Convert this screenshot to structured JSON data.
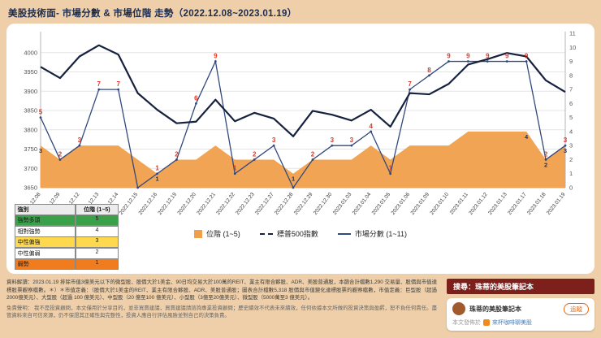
{
  "page": {
    "title": "美股技術面- 市場分數 & 市場位階 走勢（2022.12.08~2023.01.19）"
  },
  "chart_data": {
    "type": "line",
    "title": "美股技術面- 市場分數 & 市場位階 走勢（2022.12.08~2023.01.19）",
    "categories": [
      "2022.12.08",
      "2022.12.09",
      "2022.12.12",
      "2022.12.13",
      "2022.12.14",
      "2022.12.15",
      "2022.12.16",
      "2022.12.19",
      "2022.12.20",
      "2022.12.21",
      "2022.12.22",
      "2022.12.23",
      "2022.12.27",
      "2022.12.28",
      "2022.12.29",
      "2022.12.30",
      "2023.01.03",
      "2023.01.04",
      "2023.01.05",
      "2023.01.06",
      "2023.01.09",
      "2023.01.10",
      "2023.01.11",
      "2023.01.12",
      "2023.01.13",
      "2023.01.17",
      "2023.01.18",
      "2023.01.19"
    ],
    "series": [
      {
        "name": "位階 (1~5)",
        "type": "area",
        "axis": "right",
        "color": "#f0a04b",
        "values": [
          3,
          2,
          3,
          3,
          3,
          2,
          1,
          2,
          2,
          3,
          2,
          2,
          2,
          1,
          2,
          2,
          2,
          3,
          2,
          3,
          3,
          3,
          4,
          4,
          4,
          4,
          2,
          3
        ],
        "label_indices": [
          0,
          6,
          13,
          25,
          26,
          27
        ]
      },
      {
        "name": "標普500指數",
        "type": "line",
        "axis": "left",
        "color": "#16213e",
        "values": [
          3963,
          3934,
          3990,
          4019,
          3995,
          3895,
          3852,
          3817,
          3821,
          3878,
          3822,
          3844,
          3829,
          3783,
          3849,
          3839,
          3824,
          3852,
          3808,
          3895,
          3892,
          3919,
          3969,
          3983,
          3999,
          3990,
          3928,
          3898
        ]
      },
      {
        "name": "市場分數 (1~11)",
        "type": "line",
        "axis": "right",
        "color": "#31497c",
        "label_color": "#d43a2f",
        "values": [
          5,
          2,
          3,
          7,
          7,
          0,
          1,
          2,
          6,
          9,
          1,
          2,
          3,
          0,
          2,
          3,
          3,
          4,
          1,
          7,
          8,
          9,
          9,
          9,
          9,
          9,
          2,
          3
        ]
      }
    ],
    "left_axis": {
      "min": 3650,
      "max": 4050,
      "ticks": [
        4000,
        3950,
        3900,
        3850,
        3800,
        3750,
        3700,
        3650
      ]
    },
    "right_axis": {
      "min": 0,
      "max": 11,
      "ticks": [
        11,
        10,
        9,
        8,
        7,
        6,
        5,
        4,
        3,
        2,
        1,
        0
      ]
    },
    "grid": true,
    "legend_position": "bottom"
  },
  "legend": [
    {
      "label": "位階 (1~5)",
      "swatch": "area"
    },
    {
      "label": "標普500指數",
      "swatch": "dash"
    },
    {
      "label": "市場分數 (1~11)",
      "swatch": "line"
    }
  ],
  "level_table": {
    "headers": [
      "強別",
      "位階 (1~5)"
    ],
    "rows": [
      {
        "label": "強勢多頭",
        "value": "5",
        "color": "#3ba04a"
      },
      {
        "label": "相對強勢",
        "value": "4",
        "color": "#ffffff"
      },
      {
        "label": "中性偏強",
        "value": "3",
        "color": "#ffd94d"
      },
      {
        "label": "中性偏弱",
        "value": "2",
        "color": "#ffffff"
      },
      {
        "label": "弱勢",
        "value": "1",
        "color": "#f07c1e"
      }
    ]
  },
  "footer": {
    "data_note": "資料解讀：2023.01.19 排除市值3億美元以下的微型股、股價大於1美金、90日均交易大於100萬的REIT、業主有限合夥股、ADR、美股普通股，本篩合計檔數1,290 交易量、股價與市值達標股票觀察檔數。＊）＊市值定義：（股價大於1美金的REIT、業主有限合夥股、ADR、美股普通股；圖表合計檔數5,318 股價與市值變化達標股票的觀察檔數，市值定義：巨型股（超過2000億美元）、大型股（超過 100 億美元）、中型股（20 億至100 億美元）、小型股（3億至20億美元）、微型股（5000萬至3 億美元）。",
    "disclaimer": "免責聲明： 我不是投資顧問，本文僅用於分享目的，並非買賣建議，買賣建議請諮詢專業投資顧問；歷史績效不代表未來績效，任何依據本文所做的投資決策與盈虧，恕不負任何責任。盡管資料來自可信來源，仍不保證其正確性與完整性，投資人應自行評估風險並對自己的決策負責。",
    "search_banner": "搜尋：珠蒂的美股筆記本",
    "profile": {
      "name": "珠蒂的美股筆記本",
      "follow_button": "追蹤",
      "published_prefix": "本文發佈於",
      "publication": "來杯咖啡聊美股"
    }
  },
  "colors": {
    "page_bg": "#eecfa9",
    "panel_bg": "#ffffff",
    "area_fill": "#f0a04b",
    "spx_line": "#16213e",
    "score_line": "#31497c",
    "score_label": "#d43a2f",
    "banner_bg": "#7d1f1a",
    "follow_accent": "#e8650f"
  }
}
